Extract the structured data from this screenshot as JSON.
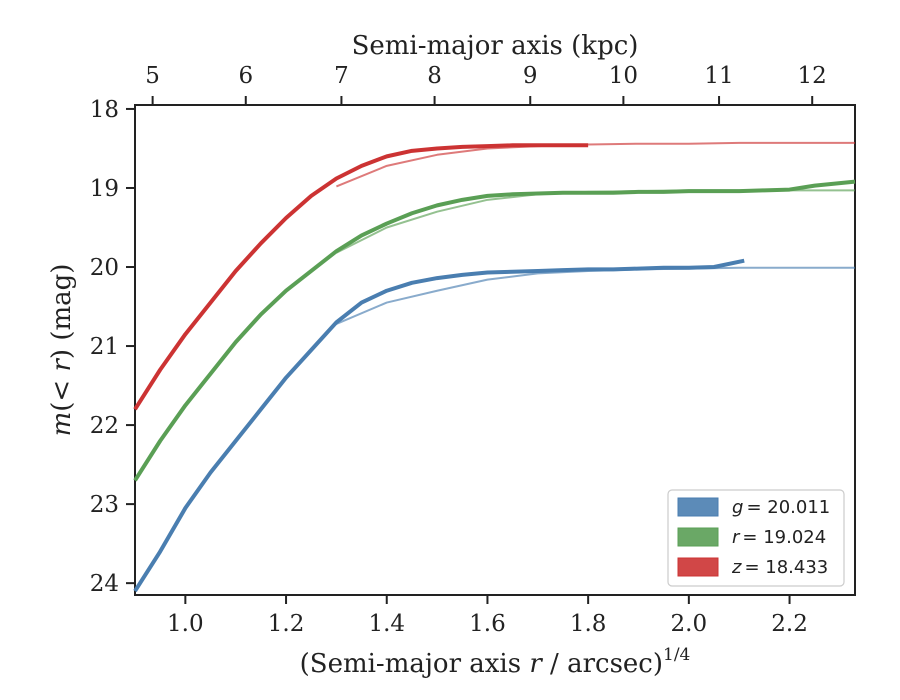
{
  "chart_data": {
    "type": "line",
    "xlabel_top": "Semi-major axis (kpc)",
    "xlabel_bottom_prefix": "(Semi-major axis ",
    "xlabel_bottom_var": "r",
    "xlabel_bottom_suffix": " / arcsec)",
    "xlabel_bottom_exp": "1/4",
    "ylabel_prefix": "m",
    "ylabel_mid": "(< ",
    "ylabel_var": "r",
    "ylabel_suffix": ") (mag)",
    "xlim": [
      0.9,
      2.33
    ],
    "ylim": [
      24.15,
      17.95
    ],
    "y_inverted": true,
    "x_ticks": [
      1.0,
      1.2,
      1.4,
      1.6,
      1.8,
      2.0,
      2.2
    ],
    "x_tick_labels": [
      "1.0",
      "1.2",
      "1.4",
      "1.6",
      "1.8",
      "2.0",
      "2.2"
    ],
    "y_ticks": [
      18,
      19,
      20,
      21,
      22,
      23,
      24
    ],
    "y_tick_labels": [
      "18",
      "19",
      "20",
      "21",
      "22",
      "23",
      "24"
    ],
    "top_ticks": [
      {
        "x": 0.935,
        "label": "5"
      },
      {
        "x": 1.12,
        "label": "6"
      },
      {
        "x": 1.31,
        "label": "7"
      },
      {
        "x": 1.495,
        "label": "8"
      },
      {
        "x": 1.685,
        "label": "9"
      },
      {
        "x": 1.87,
        "label": "10"
      },
      {
        "x": 2.06,
        "label": "11"
      },
      {
        "x": 2.245,
        "label": "12"
      }
    ],
    "legend_position": "lower-right",
    "series": [
      {
        "name": "g",
        "legend_label": "= 20.011",
        "color": "#4a7eb0",
        "x": [
          0.9,
          0.95,
          1.0,
          1.05,
          1.1,
          1.15,
          1.2,
          1.25,
          1.3,
          1.35,
          1.4,
          1.45,
          1.5,
          1.55,
          1.6,
          1.65,
          1.7,
          1.75,
          1.8,
          1.85,
          1.9,
          1.95,
          2.0,
          2.05,
          2.11
        ],
        "y": [
          24.1,
          23.6,
          23.05,
          22.6,
          22.2,
          21.8,
          21.4,
          21.05,
          20.7,
          20.45,
          20.3,
          20.2,
          20.14,
          20.1,
          20.07,
          20.06,
          20.05,
          20.04,
          20.03,
          20.03,
          20.02,
          20.01,
          20.01,
          20.0,
          19.92
        ],
        "model_x": [
          1.3,
          1.4,
          1.5,
          1.6,
          1.7,
          1.8,
          1.9,
          2.0,
          2.1,
          2.2,
          2.33
        ],
        "model_y": [
          20.72,
          20.45,
          20.3,
          20.16,
          20.08,
          20.05,
          20.03,
          20.02,
          20.01,
          20.01,
          20.01
        ]
      },
      {
        "name": "r",
        "legend_label": "= 19.024",
        "color": "#5a9f55",
        "x": [
          0.9,
          0.95,
          1.0,
          1.05,
          1.1,
          1.15,
          1.2,
          1.25,
          1.3,
          1.35,
          1.4,
          1.45,
          1.5,
          1.55,
          1.6,
          1.65,
          1.7,
          1.75,
          1.8,
          1.85,
          1.9,
          1.95,
          2.0,
          2.05,
          2.1,
          2.15,
          2.2,
          2.25,
          2.33
        ],
        "y": [
          22.7,
          22.2,
          21.75,
          21.35,
          20.95,
          20.6,
          20.3,
          20.05,
          19.8,
          19.6,
          19.45,
          19.32,
          19.22,
          19.15,
          19.1,
          19.08,
          19.07,
          19.06,
          19.06,
          19.06,
          19.05,
          19.05,
          19.04,
          19.04,
          19.04,
          19.03,
          19.02,
          18.97,
          18.92
        ],
        "model_x": [
          1.3,
          1.4,
          1.5,
          1.6,
          1.7,
          1.8,
          1.9,
          2.0,
          2.1,
          2.2,
          2.33
        ],
        "model_y": [
          19.82,
          19.5,
          19.3,
          19.15,
          19.08,
          19.05,
          19.04,
          19.03,
          19.03,
          19.03,
          19.03
        ]
      },
      {
        "name": "z",
        "legend_label": "= 18.433",
        "color": "#cc3333",
        "x": [
          0.9,
          0.95,
          1.0,
          1.05,
          1.1,
          1.15,
          1.2,
          1.25,
          1.3,
          1.35,
          1.4,
          1.45,
          1.5,
          1.55,
          1.6,
          1.65,
          1.7,
          1.75,
          1.8
        ],
        "y": [
          21.8,
          21.3,
          20.85,
          20.45,
          20.05,
          19.7,
          19.38,
          19.1,
          18.88,
          18.72,
          18.6,
          18.53,
          18.5,
          18.48,
          18.47,
          18.46,
          18.46,
          18.46,
          18.46
        ],
        "model_x": [
          1.3,
          1.4,
          1.5,
          1.6,
          1.7,
          1.8,
          1.9,
          2.0,
          2.1,
          2.2,
          2.33
        ],
        "model_y": [
          18.98,
          18.72,
          18.58,
          18.5,
          18.47,
          18.45,
          18.44,
          18.44,
          18.43,
          18.43,
          18.43
        ]
      }
    ]
  }
}
